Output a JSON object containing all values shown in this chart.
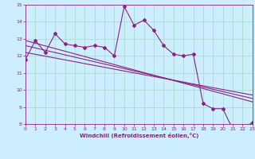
{
  "title": "",
  "xlabel": "Windchill (Refroidissement éolien,°C)",
  "bg_color": "#cceeff",
  "grid_color": "#aaddcc",
  "line_color": "#882288",
  "xlim": [
    0,
    23
  ],
  "ylim": [
    8,
    15
  ],
  "yticks": [
    8,
    9,
    10,
    11,
    12,
    13,
    14,
    15
  ],
  "xticks": [
    0,
    1,
    2,
    3,
    4,
    5,
    6,
    7,
    8,
    9,
    10,
    11,
    12,
    13,
    14,
    15,
    16,
    17,
    18,
    19,
    20,
    21,
    22,
    23
  ],
  "series1_x": [
    0,
    1,
    2,
    3,
    4,
    5,
    6,
    7,
    8,
    9,
    10,
    11,
    12,
    13,
    14,
    15,
    16,
    17,
    18,
    19,
    20,
    21,
    22,
    23
  ],
  "series1_y": [
    11.8,
    12.9,
    12.2,
    13.3,
    12.7,
    12.6,
    12.5,
    12.6,
    12.5,
    12.0,
    14.9,
    13.8,
    14.1,
    13.5,
    12.6,
    12.1,
    12.0,
    12.1,
    9.2,
    8.9,
    8.9,
    7.7,
    7.7,
    8.1
  ],
  "series2_x": [
    0,
    23
  ],
  "series2_y": [
    12.9,
    9.3
  ],
  "series3_x": [
    0,
    23
  ],
  "series3_y": [
    12.6,
    9.5
  ],
  "series4_x": [
    0,
    23
  ],
  "series4_y": [
    12.2,
    9.7
  ]
}
